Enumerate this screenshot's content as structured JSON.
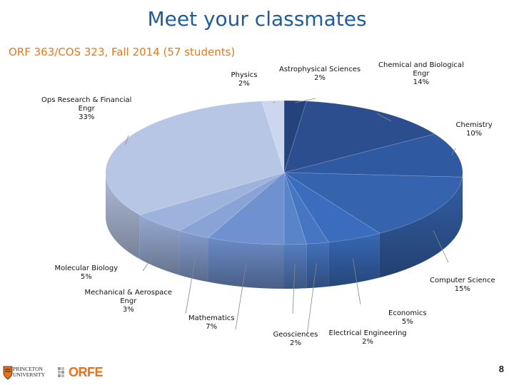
{
  "title": "Meet your classmates",
  "subtitle": "ORF 363/COS 323, Fall 2014 (57 students)",
  "page_number": "8",
  "logos": {
    "princeton": "PRINCETON\nUNIVERSITY",
    "orfe": "ORFE"
  },
  "chart_data": {
    "type": "pie",
    "title": "",
    "slices": [
      {
        "label": "Astrophysical Sciences",
        "value": 2,
        "display": "2%",
        "color": "#25427c"
      },
      {
        "label": "Chemical and Biological\nEngr",
        "value": 14,
        "display": "14%",
        "color": "#2c4e8f"
      },
      {
        "label": "Chemistry",
        "value": 10,
        "display": "10%",
        "color": "#2f5aa2"
      },
      {
        "label": "Computer Science",
        "value": 15,
        "display": "15%",
        "color": "#3563ad"
      },
      {
        "label": "Economics",
        "value": 5,
        "display": "5%",
        "color": "#3a6dbd"
      },
      {
        "label": "Electrical Engineering",
        "value": 2,
        "display": "2%",
        "color": "#4676c2"
      },
      {
        "label": "Geosciences",
        "value": 2,
        "display": "2%",
        "color": "#5a84c9"
      },
      {
        "label": "Mathematics",
        "value": 7,
        "display": "7%",
        "color": "#7091cf"
      },
      {
        "label": "Mechanical & Aerospace\nEngr",
        "value": 3,
        "display": "3%",
        "color": "#8aa3d6"
      },
      {
        "label": "Molecular Biology",
        "value": 5,
        "display": "5%",
        "color": "#9db2dc"
      },
      {
        "label": "Ops Research & Financial\nEngr",
        "value": 33,
        "display": "33%",
        "color": "#b8c6e6"
      },
      {
        "label": "Physics",
        "value": 2,
        "display": "2%",
        "color": "#ccd6ee"
      }
    ]
  }
}
